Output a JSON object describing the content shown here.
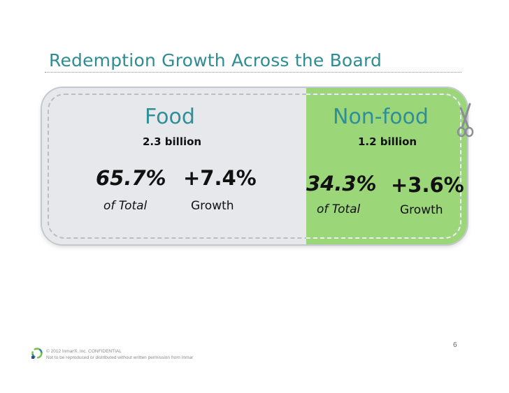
{
  "title": "Redemption Growth Across the Board",
  "food": {
    "name": "Food",
    "total": "2.3 billion",
    "share": "65.7%",
    "share_label": "of Total",
    "growth": "+7.4%",
    "growth_label": "Growth"
  },
  "nonfood": {
    "name": "Non-food",
    "total": "1.2 billion",
    "share": "34.3%",
    "share_label": "of Total",
    "growth": "+3.6%",
    "growth_label": "Growth"
  },
  "page_number": "6",
  "footer": {
    "line1": "© 2012 Inmar®, Inc. CONFIDENTIAL",
    "line2": "Not to be reproduced or distributed without written permission from Inmar"
  },
  "colors": {
    "title": "#2e8c93",
    "food_panel": "#e6e8eb",
    "nonfood_panel": "#9bd679"
  },
  "icons": [
    "scissors-icon",
    "inmar-logo"
  ]
}
